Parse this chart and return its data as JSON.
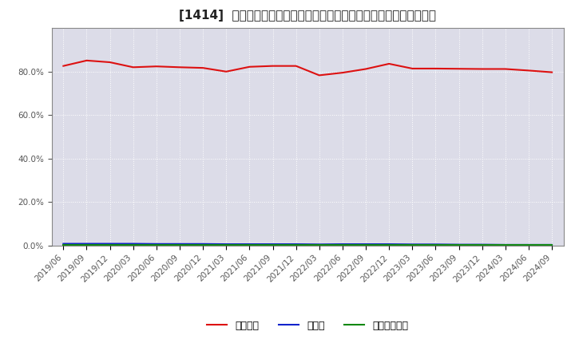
{
  "title": "[1414]  自己資本、のれん、繰延税金資産の総資産に対する比率の推移",
  "x_labels": [
    "2019/06",
    "2019/09",
    "2019/12",
    "2020/03",
    "2020/06",
    "2020/09",
    "2020/12",
    "2021/03",
    "2021/06",
    "2021/09",
    "2021/12",
    "2022/03",
    "2022/06",
    "2022/09",
    "2022/12",
    "2023/03",
    "2023/06",
    "2023/09",
    "2023/12",
    "2024/03",
    "2024/06",
    "2024/09"
  ],
  "equity_ratio": [
    0.826,
    0.851,
    0.843,
    0.82,
    0.824,
    0.82,
    0.817,
    0.8,
    0.822,
    0.826,
    0.826,
    0.783,
    0.795,
    0.812,
    0.836,
    0.814,
    0.814,
    0.813,
    0.812,
    0.812,
    0.805,
    0.797
  ],
  "goodwill_ratio": [
    0.009,
    0.009,
    0.009,
    0.009,
    0.008,
    0.008,
    0.008,
    0.007,
    0.007,
    0.007,
    0.007,
    0.006,
    0.007,
    0.007,
    0.007,
    0.006,
    0.006,
    0.005,
    0.005,
    0.004,
    0.004,
    0.004
  ],
  "deferred_tax_ratio": [
    0.004,
    0.004,
    0.004,
    0.004,
    0.004,
    0.004,
    0.004,
    0.004,
    0.004,
    0.004,
    0.004,
    0.004,
    0.004,
    0.004,
    0.004,
    0.004,
    0.004,
    0.004,
    0.004,
    0.004,
    0.004,
    0.004
  ],
  "equity_color": "#dd1111",
  "goodwill_color": "#1122cc",
  "deferred_tax_color": "#118811",
  "bg_color": "#ffffff",
  "plot_bg_color": "#dcdce8",
  "grid_color": "#ffffff",
  "legend_labels": [
    "自己資本",
    "のれん",
    "繰延税金資産"
  ],
  "ylim": [
    0.0,
    1.0
  ],
  "yticks": [
    0.0,
    0.2,
    0.4,
    0.6,
    0.8
  ],
  "title_fontsize": 11,
  "tick_fontsize": 7.5,
  "legend_fontsize": 9
}
